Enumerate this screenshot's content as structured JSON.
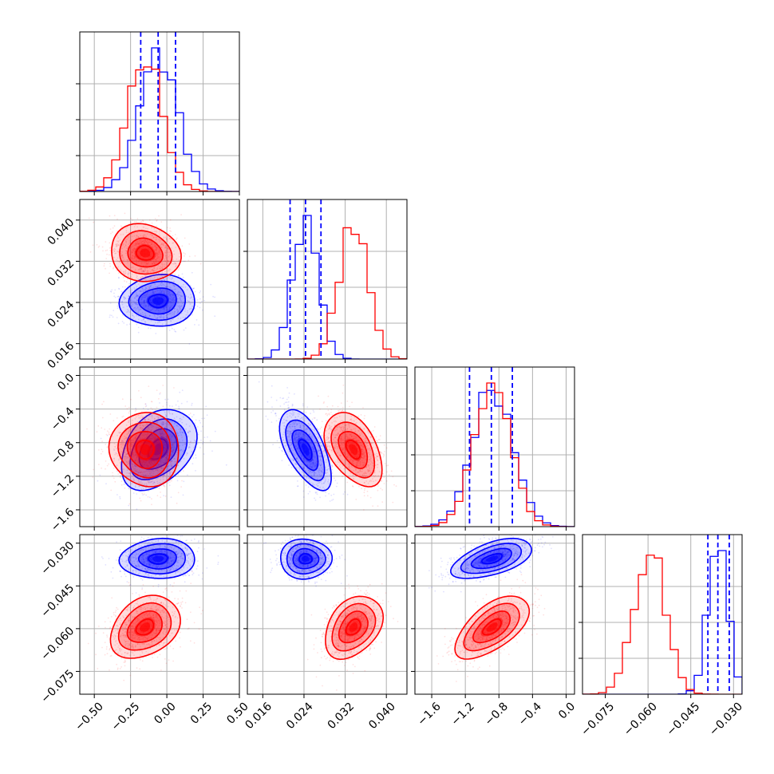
{
  "chart_data": {
    "type": "corner",
    "colors": {
      "series_a": "#0000ff",
      "series_b": "#ff0000",
      "grid": "#b0b0b0",
      "axis": "#000000"
    },
    "series": [
      {
        "color": "#0000ff"
      },
      {
        "color": "#ff0000"
      }
    ],
    "params": [
      {
        "range": [
          -0.6,
          0.5
        ],
        "ticks": [
          "−0.50",
          "−0.25",
          "0.00",
          "0.25",
          "0.50"
        ],
        "tick_values": [
          -0.5,
          -0.25,
          0.0,
          0.25,
          0.5
        ],
        "a": {
          "mean": -0.06,
          "sd": 0.13
        },
        "b": {
          "mean": -0.15,
          "sd": 0.12
        }
      },
      {
        "range": [
          0.013,
          0.044
        ],
        "ticks": [
          "0.016",
          "0.024",
          "0.032",
          "0.040"
        ],
        "tick_values": [
          0.016,
          0.024,
          0.032,
          0.04
        ],
        "a": {
          "mean": 0.0243,
          "sd": 0.0025
        },
        "b": {
          "mean": 0.0336,
          "sd": 0.0028
        }
      },
      {
        "range": [
          -1.8,
          0.1
        ],
        "ticks": [
          "−1.6",
          "−1.2",
          "−0.8",
          "−0.4",
          "0.0"
        ],
        "tick_values": [
          -1.6,
          -1.2,
          -0.8,
          -0.4,
          0.0
        ],
        "a": {
          "mean": -0.88,
          "sd": 0.24
        },
        "b": {
          "mean": -0.88,
          "sd": 0.22
        }
      },
      {
        "range": [
          -0.083,
          -0.027
        ],
        "ticks": [
          "−0.075",
          "−0.060",
          "−0.045",
          "−0.030"
        ],
        "tick_values": [
          -0.075,
          -0.06,
          -0.045,
          -0.03
        ],
        "a": {
          "mean": -0.0355,
          "sd": 0.0035
        },
        "b": {
          "mean": -0.0595,
          "sd": 0.0055
        }
      }
    ],
    "quantile_lines": [
      [
        -0.18,
        -0.06,
        0.06
      ],
      [
        0.0213,
        0.0243,
        0.0273
      ],
      [
        -1.15,
        -0.89,
        -0.64
      ],
      [
        -0.039,
        -0.0355,
        -0.0315
      ]
    ],
    "correlations": {
      "1-0": {
        "a": 0.05,
        "b": -0.1
      },
      "2-0": {
        "a": 0.35,
        "b": -0.05
      },
      "2-1": {
        "a": -0.6,
        "b": -0.45
      },
      "3-0": {
        "a": 0.05,
        "b": 0.3
      },
      "3-1": {
        "a": 0.0,
        "b": 0.35
      },
      "3-2": {
        "a": 0.55,
        "b": 0.6
      }
    },
    "grid": true
  }
}
